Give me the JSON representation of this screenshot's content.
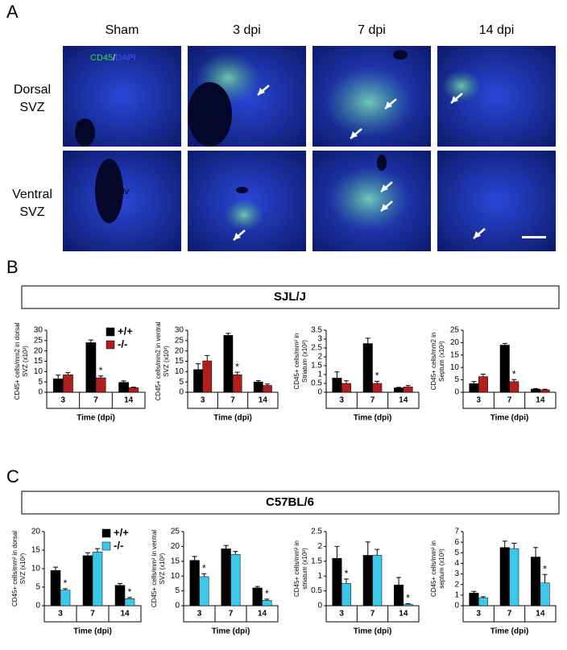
{
  "panel_labels": [
    "A",
    "B",
    "C"
  ],
  "image_grid": {
    "columns": [
      "Sham",
      "3 dpi",
      "7 dpi",
      "14 dpi"
    ],
    "rows": [
      [
        "Dorsal",
        "SVZ"
      ],
      [
        "Ventral",
        "SVZ"
      ]
    ],
    "stain": [
      "CD45",
      "/",
      "DAPI"
    ],
    "lv_labels": [
      "lv",
      "lv"
    ]
  },
  "strains": [
    "SJL/J",
    "C57BL/6"
  ],
  "chart_data": [
    {
      "type": "bar",
      "ylabel": [
        "CD45+ cells/mm2 in dorsal",
        "SVZ (x10²)"
      ],
      "xlabel": "Time (dpi)",
      "categories": [
        "3",
        "7",
        "14"
      ],
      "ylim": [
        0,
        30
      ],
      "yticks": [
        0,
        5,
        10,
        15,
        20,
        25,
        30
      ],
      "legend": true,
      "legend_position": "upper right",
      "series": [
        {
          "name": "+/+",
          "color": "#000000",
          "values": [
            6.5,
            24,
            4.8
          ],
          "errors": [
            1.8,
            1.3,
            0.7
          ],
          "stars": [
            null,
            null,
            null
          ]
        },
        {
          "name": "-/-",
          "color": "#b01e1e",
          "values": [
            8.5,
            7,
            2.2
          ],
          "errors": [
            1.0,
            0.9,
            0.3
          ],
          "stars": [
            null,
            "*",
            null
          ]
        }
      ]
    },
    {
      "type": "bar",
      "ylabel": [
        "CD45+ cells/mm2 in ventral",
        "SVZ (x10²)"
      ],
      "xlabel": "Time (dpi)",
      "categories": [
        "3",
        "7",
        "14"
      ],
      "ylim": [
        0,
        30
      ],
      "yticks": [
        0,
        5,
        10,
        15,
        20,
        25,
        30
      ],
      "legend": false,
      "series": [
        {
          "name": "+/+",
          "color": "#000000",
          "values": [
            11,
            27.5,
            5
          ],
          "errors": [
            2.8,
            1.0,
            0.6
          ],
          "stars": [
            null,
            null,
            null
          ]
        },
        {
          "name": "-/-",
          "color": "#b01e1e",
          "values": [
            15.2,
            8.5,
            3.3
          ],
          "errors": [
            2.6,
            1.2,
            0.7
          ],
          "stars": [
            null,
            "*",
            null
          ]
        }
      ]
    },
    {
      "type": "bar",
      "ylabel": [
        "CD45+ cells/mm² in",
        "Striatum (x10²)"
      ],
      "xlabel": "Time (dpi)",
      "categories": [
        "3",
        "7",
        "14"
      ],
      "ylim": [
        0,
        3.5
      ],
      "yticks": [
        0,
        0.5,
        1,
        1.5,
        2,
        2.5,
        3,
        3.5
      ],
      "legend": false,
      "series": [
        {
          "name": "+/+",
          "color": "#000000",
          "values": [
            0.8,
            2.75,
            0.25
          ],
          "errors": [
            0.35,
            0.3,
            0.03
          ],
          "stars": [
            null,
            null,
            null
          ]
        },
        {
          "name": "-/-",
          "color": "#b01e1e",
          "values": [
            0.5,
            0.5,
            0.3
          ],
          "errors": [
            0.15,
            0.12,
            0.08
          ],
          "stars": [
            null,
            "*",
            null
          ]
        }
      ]
    },
    {
      "type": "bar",
      "ylabel": [
        "CD45+ cells/mm2 in",
        "Septum (x10²)"
      ],
      "xlabel": "Time (dpi)",
      "categories": [
        "3",
        "7",
        "14"
      ],
      "ylim": [
        0,
        25
      ],
      "yticks": [
        0,
        5,
        10,
        15,
        20,
        25
      ],
      "legend": false,
      "series": [
        {
          "name": "+/+",
          "color": "#000000",
          "values": [
            3.5,
            19,
            1.3
          ],
          "errors": [
            0.8,
            0.7,
            0.2
          ],
          "stars": [
            null,
            null,
            null
          ]
        },
        {
          "name": "-/-",
          "color": "#b01e1e",
          "values": [
            6.3,
            4.3,
            1.0
          ],
          "errors": [
            1.0,
            0.8,
            0.2
          ],
          "stars": [
            null,
            "*",
            null
          ]
        }
      ]
    },
    {
      "type": "bar",
      "ylabel": [
        "CD45+ cells/mm² in dorsal",
        "SVZ (x10²)"
      ],
      "xlabel": "Time (dpi)",
      "categories": [
        "3",
        "7",
        "14"
      ],
      "ylim": [
        0,
        20
      ],
      "yticks": [
        0,
        5,
        10,
        15,
        20
      ],
      "legend": true,
      "legend_position": "upper right",
      "series": [
        {
          "name": "+/+",
          "color": "#000000",
          "values": [
            9.5,
            13.5,
            5.5
          ],
          "errors": [
            0.9,
            0.8,
            0.5
          ],
          "stars": [
            null,
            null,
            null
          ]
        },
        {
          "name": "-/-",
          "color": "#3cc8ea",
          "values": [
            4.2,
            14.5,
            1.9
          ],
          "errors": [
            0.4,
            0.9,
            0.3
          ],
          "stars": [
            "*",
            null,
            "*"
          ]
        }
      ]
    },
    {
      "type": "bar",
      "ylabel": [
        "CD45+ cells/mm² in ventral",
        "SVZ (x10²)"
      ],
      "xlabel": "Time (dpi)",
      "categories": [
        "3",
        "7",
        "14"
      ],
      "ylim": [
        0,
        25
      ],
      "yticks": [
        0,
        5,
        10,
        15,
        20,
        25
      ],
      "legend": false,
      "series": [
        {
          "name": "+/+",
          "color": "#000000",
          "values": [
            15.3,
            19.2,
            6
          ],
          "errors": [
            1.3,
            1.1,
            0.5
          ],
          "stars": [
            null,
            null,
            null
          ]
        },
        {
          "name": "-/-",
          "color": "#3cc8ea",
          "values": [
            9.8,
            17.3,
            1.8
          ],
          "errors": [
            1.0,
            1.0,
            0.4
          ],
          "stars": [
            "*",
            null,
            "*"
          ]
        }
      ]
    },
    {
      "type": "bar",
      "ylabel": [
        "CD45+ cells/mm² in",
        "striatum (x10²)"
      ],
      "xlabel": "Time (dpi)",
      "categories": [
        "3",
        "7",
        "14"
      ],
      "ylim": [
        0,
        2.5
      ],
      "yticks": [
        0,
        0.5,
        1,
        1.5,
        2,
        2.5
      ],
      "legend": false,
      "series": [
        {
          "name": "+/+",
          "color": "#000000",
          "values": [
            1.6,
            1.7,
            0.7
          ],
          "errors": [
            0.4,
            0.45,
            0.25
          ],
          "stars": [
            null,
            null,
            null
          ]
        },
        {
          "name": "-/-",
          "color": "#3cc8ea",
          "values": [
            0.75,
            1.7,
            0.05
          ],
          "errors": [
            0.15,
            0.2,
            0.02
          ],
          "stars": [
            "*",
            null,
            "*"
          ]
        }
      ]
    },
    {
      "type": "bar",
      "ylabel": [
        "CD45+ cells/mm² in",
        "septum (x10²)"
      ],
      "xlabel": "Time (dpi)",
      "categories": [
        "3",
        "7",
        "14"
      ],
      "ylim": [
        0,
        7
      ],
      "yticks": [
        0,
        1,
        2,
        3,
        4,
        5,
        6,
        7
      ],
      "legend": false,
      "series": [
        {
          "name": "+/+",
          "color": "#000000",
          "values": [
            1.2,
            5.5,
            4.6
          ],
          "errors": [
            0.15,
            0.6,
            0.9
          ],
          "stars": [
            null,
            null,
            null
          ]
        },
        {
          "name": "-/-",
          "color": "#3cc8ea",
          "values": [
            0.75,
            5.4,
            2.15
          ],
          "errors": [
            0.1,
            0.5,
            0.8
          ],
          "stars": [
            null,
            null,
            "*"
          ]
        }
      ]
    }
  ]
}
